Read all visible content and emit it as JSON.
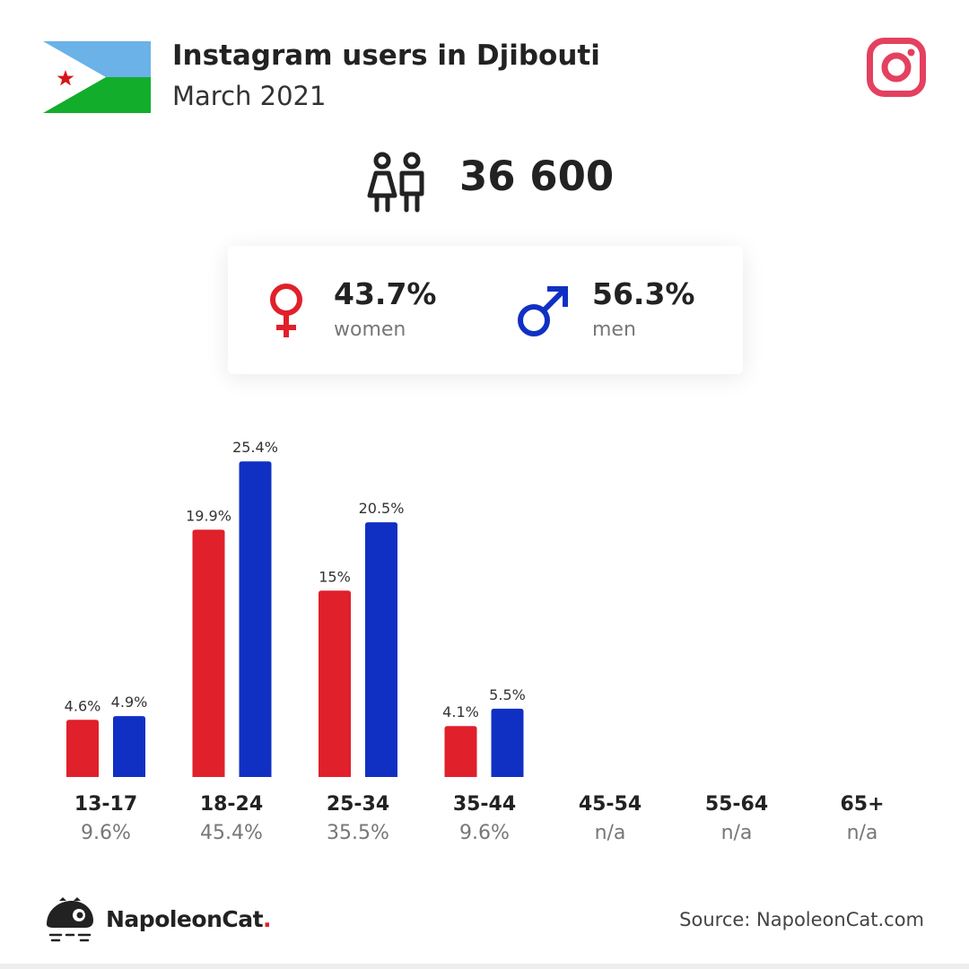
{
  "header": {
    "title": "Instagram users in Djibouti",
    "subtitle": "March 2021"
  },
  "total": {
    "value": "36 600",
    "icon": "people-icon"
  },
  "gender": {
    "women": {
      "percent": "43.7%",
      "label": "women",
      "icon": "female-symbol-icon",
      "color": "#e0202a"
    },
    "men": {
      "percent": "56.3%",
      "label": "men",
      "icon": "male-symbol-icon",
      "color": "#1030c4"
    }
  },
  "colors": {
    "women": "#e0202a",
    "men": "#1030c4",
    "instagram": "#e4405f",
    "flag_blue": "#6ab2e7",
    "flag_green": "#12ad2b",
    "flag_star": "#d7141a"
  },
  "chart_data": {
    "type": "bar",
    "categories": [
      "13-17",
      "18-24",
      "25-34",
      "35-44",
      "45-54",
      "55-64",
      "65+"
    ],
    "category_shares": [
      "9.6%",
      "45.4%",
      "35.5%",
      "9.6%",
      "n/a",
      "n/a",
      "n/a"
    ],
    "series": [
      {
        "name": "women",
        "color": "#e0202a",
        "values": [
          4.6,
          19.9,
          15,
          4.1,
          null,
          null,
          null
        ],
        "labels": [
          "4.6%",
          "19.9%",
          "15%",
          "4.1%",
          "",
          "",
          ""
        ]
      },
      {
        "name": "men",
        "color": "#1030c4",
        "values": [
          4.9,
          25.4,
          20.5,
          5.5,
          null,
          null,
          null
        ],
        "labels": [
          "4.9%",
          "25.4%",
          "20.5%",
          "5.5%",
          "",
          "",
          ""
        ]
      }
    ]
  },
  "footer": {
    "brand": "NapoleonCat",
    "brand_dot": ".",
    "source": "Source: NapoleonCat.com"
  }
}
